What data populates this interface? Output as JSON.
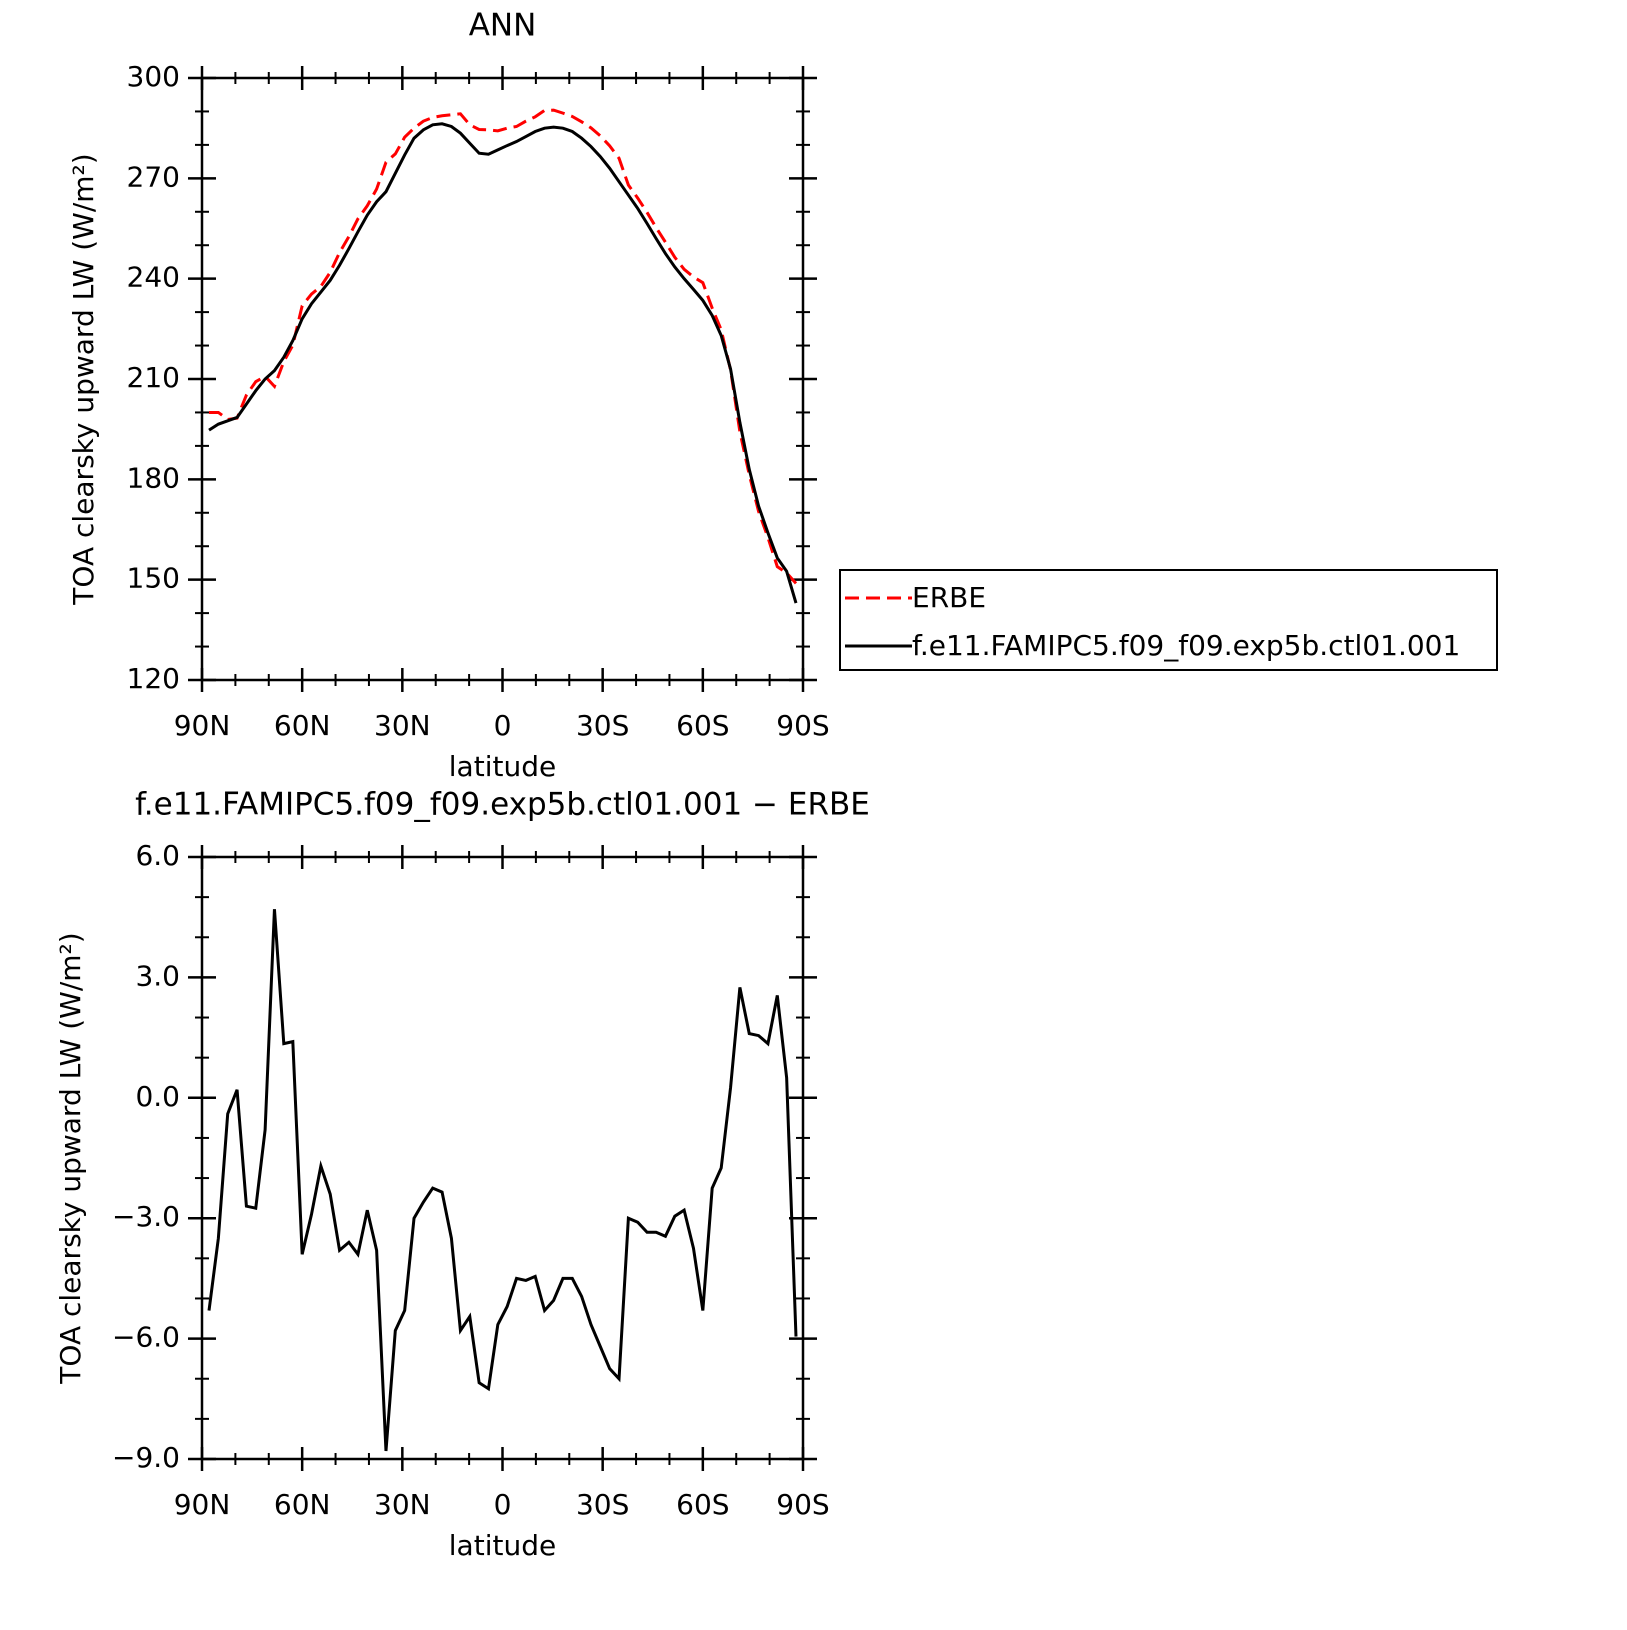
{
  "chart_data": [
    {
      "type": "line",
      "title": "ANN",
      "xlabel": "latitude",
      "ylabel": "TOA clearsky upward LW (W/m²)",
      "x": [
        87.9,
        85.1,
        82.3,
        79.5,
        76.7,
        73.9,
        71.1,
        68.3,
        65.5,
        62.8,
        60.0,
        57.2,
        54.4,
        51.6,
        48.8,
        46.0,
        43.3,
        40.5,
        37.7,
        34.9,
        32.1,
        29.3,
        26.5,
        23.7,
        20.9,
        18.1,
        15.3,
        12.6,
        9.8,
        7.0,
        4.2,
        1.4,
        -1.4,
        -4.2,
        -7.0,
        -9.8,
        -12.6,
        -15.3,
        -18.1,
        -20.9,
        -23.7,
        -26.5,
        -29.3,
        -32.1,
        -34.9,
        -37.7,
        -40.5,
        -43.3,
        -46.0,
        -48.8,
        -51.6,
        -54.4,
        -57.2,
        -60.0,
        -62.8,
        -65.5,
        -68.3,
        -71.1,
        -73.9,
        -76.7,
        -79.5,
        -82.3,
        -85.1,
        -87.9
      ],
      "series": [
        {
          "name": "ERBE",
          "color": "#ff0000",
          "linestyle": "dashed",
          "values": [
            200.0,
            200.0,
            197.9,
            198.3,
            205.2,
            209.2,
            210.8,
            207.8,
            215.2,
            220.1,
            231.9,
            235.4,
            237.7,
            241.9,
            247.8,
            252.6,
            257.9,
            261.8,
            266.8,
            274.8,
            277.3,
            282.3,
            285.0,
            287.1,
            288.2,
            288.7,
            289.0,
            289.3,
            286.0,
            284.6,
            284.5,
            284.2,
            285.0,
            285.5,
            287.1,
            288.4,
            290.3,
            290.4,
            289.5,
            288.5,
            286.9,
            285.1,
            282.7,
            279.7,
            276.0,
            268.0,
            264.1,
            259.8,
            255.3,
            250.9,
            246.4,
            242.8,
            240.5,
            238.8,
            231.2,
            224.7,
            212.7,
            194.2,
            181.4,
            170.4,
            162.6,
            153.9,
            152.0,
            148.9
          ]
        },
        {
          "name": "f.e11.FAMIPC5.f09_f09.exp5b.ctl01.001",
          "color": "#000000",
          "linestyle": "solid",
          "values": [
            194.7,
            196.5,
            197.5,
            198.5,
            202.5,
            206.5,
            210.0,
            212.5,
            216.5,
            221.5,
            228.0,
            232.5,
            236.0,
            239.5,
            244.0,
            249.0,
            254.0,
            259.0,
            263.0,
            266.0,
            271.5,
            277.0,
            282.0,
            284.5,
            286.0,
            286.3,
            285.5,
            283.5,
            280.5,
            277.5,
            277.2,
            278.5,
            279.8,
            281.0,
            282.5,
            284.0,
            285.0,
            285.3,
            285.0,
            284.0,
            282.0,
            279.5,
            276.5,
            273.0,
            269.0,
            265.0,
            261.0,
            256.5,
            252.0,
            247.5,
            243.5,
            240.0,
            236.8,
            233.5,
            229.0,
            223.0,
            213.0,
            197.0,
            183.0,
            172.0,
            164.0,
            156.5,
            152.5,
            143.0
          ]
        }
      ],
      "xlim": [
        90,
        -90
      ],
      "xticks": [
        {
          "value": 90,
          "label": "90N"
        },
        {
          "value": 60,
          "label": "60N"
        },
        {
          "value": 30,
          "label": "30N"
        },
        0,
        {
          "value": -30,
          "label": "30S"
        },
        {
          "value": -60,
          "label": "60S"
        },
        {
          "value": -90,
          "label": "90S"
        }
      ],
      "xminorticks": [
        80,
        70,
        50,
        40,
        20,
        10,
        -10,
        -20,
        -40,
        -50,
        -70,
        -80
      ],
      "ylim": [
        120,
        300
      ],
      "yticks": [
        120,
        150,
        180,
        210,
        240,
        270,
        300
      ],
      "yminorticks": [
        130,
        140,
        160,
        170,
        190,
        200,
        220,
        230,
        250,
        260,
        280,
        290
      ],
      "legend": "outside-right"
    },
    {
      "type": "line",
      "title": "f.e11.FAMIPC5.f09_f09.exp5b.ctl01.001 − ERBE",
      "xlabel": "latitude",
      "ylabel": "TOA clearsky upward LW (W/m²)",
      "x": [
        87.9,
        85.1,
        82.3,
        79.5,
        76.7,
        73.9,
        71.1,
        68.3,
        65.5,
        62.8,
        60.0,
        57.2,
        54.4,
        51.6,
        48.8,
        46.0,
        43.3,
        40.5,
        37.7,
        34.9,
        32.1,
        29.3,
        26.5,
        23.7,
        20.9,
        18.1,
        15.3,
        12.6,
        9.8,
        7.0,
        4.2,
        1.4,
        -1.4,
        -4.2,
        -7.0,
        -9.8,
        -12.6,
        -15.3,
        -18.1,
        -20.9,
        -23.7,
        -26.5,
        -29.3,
        -32.1,
        -34.9,
        -37.7,
        -40.5,
        -43.3,
        -46.0,
        -48.8,
        -51.6,
        -54.4,
        -57.2,
        -60.0,
        -62.8,
        -65.5,
        -68.3,
        -71.1,
        -73.9,
        -76.7,
        -79.5,
        -82.3,
        -85.1,
        -87.9
      ],
      "color": "#000000",
      "values": [
        -5.3,
        -3.5,
        -0.4,
        0.2,
        -2.7,
        -2.75,
        -0.8,
        4.7,
        1.35,
        1.4,
        -3.9,
        -2.9,
        -1.7,
        -2.4,
        -3.8,
        -3.6,
        -3.9,
        -2.8,
        -3.8,
        -8.8,
        -5.8,
        -5.3,
        -3.0,
        -2.6,
        -2.25,
        -2.35,
        -3.5,
        -5.8,
        -5.45,
        -7.1,
        -7.25,
        -5.65,
        -5.2,
        -4.5,
        -4.55,
        -4.45,
        -5.3,
        -5.05,
        -4.5,
        -4.5,
        -4.95,
        -5.65,
        -6.2,
        -6.75,
        -7.0,
        -3.0,
        -3.1,
        -3.35,
        -3.35,
        -3.45,
        -2.95,
        -2.8,
        -3.75,
        -5.3,
        -2.25,
        -1.75,
        0.25,
        2.75,
        1.6,
        1.55,
        1.35,
        2.55,
        0.5,
        -5.95
      ],
      "xlim": [
        90,
        -90
      ],
      "xticks": [
        {
          "value": 90,
          "label": "90N"
        },
        {
          "value": 60,
          "label": "60N"
        },
        {
          "value": 30,
          "label": "30N"
        },
        0,
        {
          "value": -30,
          "label": "30S"
        },
        {
          "value": -60,
          "label": "60S"
        },
        {
          "value": -90,
          "label": "90S"
        }
      ],
      "xminorticks": [
        80,
        70,
        50,
        40,
        20,
        10,
        -10,
        -20,
        -40,
        -50,
        -70,
        -80
      ],
      "ylim": [
        -9,
        6
      ],
      "yticks": [
        {
          "value": -9,
          "label": "−9.0"
        },
        {
          "value": -6,
          "label": "−6.0"
        },
        {
          "value": -3,
          "label": "−3.0"
        },
        {
          "value": 0,
          "label": "0.0"
        },
        {
          "value": 3,
          "label": "3.0"
        },
        {
          "value": 6,
          "label": "6.0"
        }
      ],
      "yminorticks": [
        -8,
        -7,
        -5,
        -4,
        -2,
        -1,
        1,
        2,
        4,
        5
      ]
    }
  ]
}
